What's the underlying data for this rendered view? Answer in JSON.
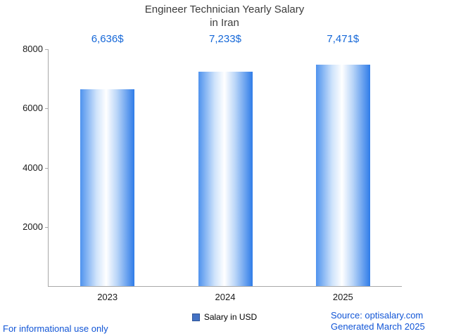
{
  "title": "Engineer Technician Yearly Salary\nin Iran",
  "chart_data": {
    "type": "bar",
    "categories": [
      "2023",
      "2024",
      "2025"
    ],
    "values": [
      6636,
      7233,
      7471
    ],
    "value_labels": [
      "6,636$",
      "7,233$",
      "7,471$"
    ],
    "series_name": "Salary in USD",
    "title": "Engineer Technician Yearly Salary in Iran",
    "xlabel": "",
    "ylabel": "",
    "ylim": [
      0,
      8000
    ],
    "yticks": [
      2000,
      4000,
      6000,
      8000
    ],
    "grid": false,
    "legend_position": "bottom"
  },
  "legend": {
    "label": "Salary in USD",
    "marker_color": "#4472c4"
  },
  "footer": {
    "left": "For informational use only",
    "source": "Source: optisalary.com",
    "generated": "Generated March 2025"
  },
  "colors": {
    "value_label": "#1668d8",
    "bar_edge_blue": "#2f7ce8",
    "bar_center": "#ffffff",
    "axis": "#a8a8a8",
    "footer_link": "#1155d6",
    "title_text": "#3c3c3c"
  }
}
